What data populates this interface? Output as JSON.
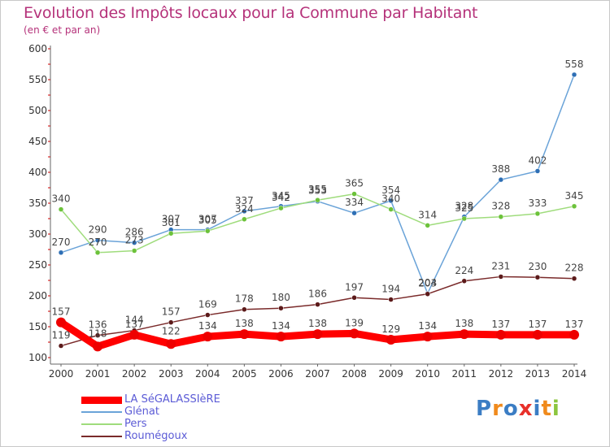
{
  "header": {
    "title": "Evolution des Impôts locaux pour la Commune par Habitant",
    "subtitle": "(en € et par an)"
  },
  "logo": {
    "text": "Proxiti",
    "letters": [
      {
        "char": "P",
        "color": "#3b7dc4"
      },
      {
        "char": "r",
        "color": "#f08a1c"
      },
      {
        "char": "o",
        "color": "#3b7dc4"
      },
      {
        "char": "x",
        "color": "#e8302a"
      },
      {
        "char": "i",
        "color": "#3b7dc4"
      },
      {
        "char": "t",
        "color": "#f08a1c"
      },
      {
        "char": "i",
        "color": "#8cc63f"
      }
    ]
  },
  "chart_data": {
    "type": "line",
    "categories": [
      "2000",
      "2001",
      "2002",
      "2003",
      "2004",
      "2005",
      "2006",
      "2007",
      "2008",
      "2009",
      "2010",
      "2011",
      "2012",
      "2013",
      "2014"
    ],
    "ylim": [
      100,
      600
    ],
    "yticks": [
      100,
      150,
      200,
      250,
      300,
      350,
      400,
      450,
      500,
      550,
      600
    ],
    "grid": false,
    "legend_position": "bottom-left",
    "series": [
      {
        "name": "LA SéGALASSIèRE",
        "color": "#ff0000",
        "marker": "#ee0000",
        "width": 9,
        "values": [
          157,
          118,
          137,
          122,
          134,
          138,
          134,
          138,
          139,
          129,
          134,
          138,
          137,
          137,
          137
        ]
      },
      {
        "name": "Glénat",
        "color": "#6aa3d8",
        "marker": "#2e6fb5",
        "width": 1.5,
        "values": [
          270,
          290,
          286,
          307,
          307,
          337,
          345,
          353,
          334,
          354,
          204,
          328,
          388,
          402,
          558
        ]
      },
      {
        "name": "Pers",
        "color": "#9fdc7c",
        "marker": "#6cc23a",
        "width": 1.5,
        "values": [
          340,
          270,
          273,
          301,
          305,
          324,
          342,
          355,
          365,
          340,
          314,
          325,
          328,
          333,
          345
        ]
      },
      {
        "name": "Roumégoux",
        "color": "#7a2a2a",
        "marker": "#5c1a1a",
        "width": 1.5,
        "values": [
          119,
          136,
          144,
          157,
          169,
          178,
          180,
          186,
          197,
          194,
          203,
          224,
          231,
          230,
          228
        ]
      }
    ]
  }
}
